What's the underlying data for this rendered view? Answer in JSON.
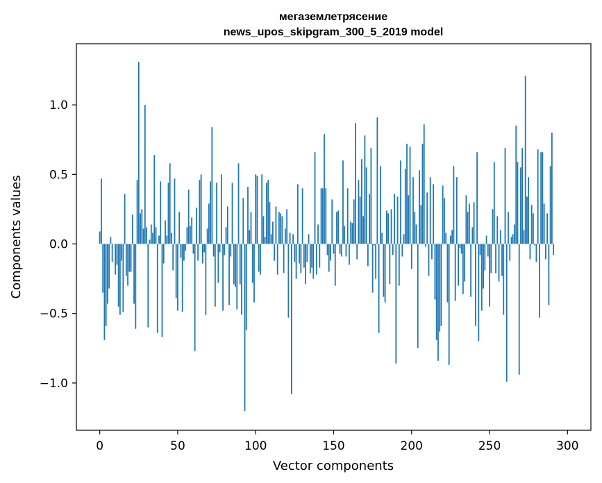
{
  "chart_data": {
    "type": "bar",
    "title": "мегаземлетрясение",
    "subtitle": "news_upos_skipgram_300_5_2019 model",
    "xlabel": "Vector components",
    "ylabel": "Components values",
    "xlim": [
      -15,
      315
    ],
    "ylim": [
      -1.34,
      1.44
    ],
    "xticks": [
      0,
      50,
      100,
      150,
      200,
      250,
      300
    ],
    "xtick_labels": [
      "0",
      "50",
      "100",
      "150",
      "200",
      "250",
      "300"
    ],
    "yticks": [
      -1.0,
      -0.5,
      0.0,
      0.5,
      1.0
    ],
    "ytick_labels": [
      "−1.0",
      "−0.5",
      "0.0",
      "0.5",
      "1.0"
    ],
    "bar_color": "#1f77b4",
    "grid": false,
    "values": [
      0.09,
      0.47,
      -0.35,
      -0.69,
      -0.59,
      -0.43,
      -0.32,
      0.05,
      -0.13,
      0.0,
      -0.22,
      -0.15,
      -0.45,
      -0.51,
      -0.12,
      -0.49,
      0.36,
      -0.23,
      -0.3,
      -0.2,
      -0.2,
      0.21,
      -0.43,
      -0.61,
      0.46,
      1.31,
      0.22,
      0.25,
      0.11,
      1.0,
      0.12,
      -0.6,
      0.03,
      0.14,
      0.08,
      0.64,
      0.12,
      -0.64,
      0.06,
      0.45,
      -0.67,
      -0.14,
      0.17,
      0.06,
      0.44,
      0.58,
      0.08,
      -0.19,
      0.47,
      -0.39,
      -0.48,
      0.23,
      -0.1,
      -0.49,
      -0.12,
      -0.05,
      0.12,
      0.39,
      0.13,
      0.19,
      -0.07,
      -0.77,
      0.26,
      -0.12,
      0.46,
      0.5,
      -0.14,
      -0.06,
      -0.51,
      0.11,
      0.29,
      0.45,
      0.84,
      -0.09,
      -0.45,
      0.44,
      -0.28,
      -0.06,
      0.5,
      -0.48,
      -0.08,
      0.12,
      0.27,
      -0.44,
      -0.09,
      0.44,
      -0.29,
      -0.31,
      -0.47,
      0.58,
      -0.29,
      -0.51,
      0.33,
      -1.2,
      -0.62,
      0.41,
      0.1,
      0.23,
      -0.28,
      -0.42,
      0.5,
      0.49,
      -0.2,
      -0.22,
      0.5,
      0.2,
      0.05,
      0.44,
      0.46,
      0.3,
      0.07,
      0.16,
      -0.12,
      0.27,
      -0.22,
      0.23,
      0.22,
      0.2,
      -0.21,
      0.11,
      0.25,
      -0.53,
      0.08,
      -1.08,
      0.07,
      -0.13,
      -0.25,
      0.43,
      -0.14,
      -0.21,
      0.4,
      -0.17,
      -0.29,
      -0.13,
      0.07,
      -0.21,
      -0.17,
      -0.25,
      0.66,
      -0.22,
      0.14,
      -0.17,
      0.4,
      0.4,
      0.79,
      0.4,
      -0.08,
      -0.2,
      -0.12,
      0.32,
      -0.07,
      -0.3,
      0.23,
      0.24,
      -0.07,
      -0.09,
      0.6,
      0.13,
      -0.09,
      0.4,
      -0.15,
      0.16,
      0.15,
      0.32,
      0.87,
      -0.11,
      0.46,
      0.34,
      0.61,
      0.2,
      0.78,
      0.55,
      -0.16,
      0.36,
      0.69,
      -0.35,
      -0.01,
      -0.25,
      0.91,
      -0.64,
      0.56,
      0.08,
      -0.38,
      -0.42,
      0.24,
      0.22,
      -0.29,
      0.25,
      -0.08,
      0.36,
      -0.86,
      0.34,
      -0.3,
      0.6,
      -0.09,
      0.07,
      0.54,
      0.72,
      0.35,
      0.7,
      -0.18,
      0.48,
      0.23,
      0.14,
      -0.75,
      0.53,
      0.28,
      0.72,
      0.86,
      -0.02,
      0.37,
      -0.23,
      0.48,
      -0.11,
      0.43,
      -0.4,
      -0.69,
      -0.84,
      -0.63,
      -0.59,
      0.42,
      0.33,
      0.08,
      -0.42,
      -0.87,
      0.06,
      0.1,
      0.56,
      -0.41,
      0.48,
      -0.3,
      -0.03,
      -0.07,
      -0.36,
      -0.27,
      0.35,
      0.23,
      0.29,
      -0.38,
      0.12,
      0.3,
      -0.59,
      0.66,
      -0.7,
      -0.08,
      -0.48,
      -0.32,
      -0.19,
      0.06,
      -0.09,
      -0.45,
      -0.21,
      0.25,
      0.59,
      -0.21,
      0.2,
      -0.27,
      0.1,
      -0.23,
      -0.51,
      0.69,
      -0.99,
      0.23,
      -0.12,
      0.05,
      0.07,
      0.14,
      0.85,
      0.59,
      -0.94,
      0.55,
      0.69,
      0.1,
      1.21,
      0.34,
      0.48,
      -0.11,
      0.28,
      0.22,
      -0.01,
      -0.13,
      0.68,
      -0.53,
      0.66,
      0.66,
      0.29,
      -0.11,
      0.22,
      -0.44,
      0.56,
      0.8,
      -0.08
    ]
  }
}
